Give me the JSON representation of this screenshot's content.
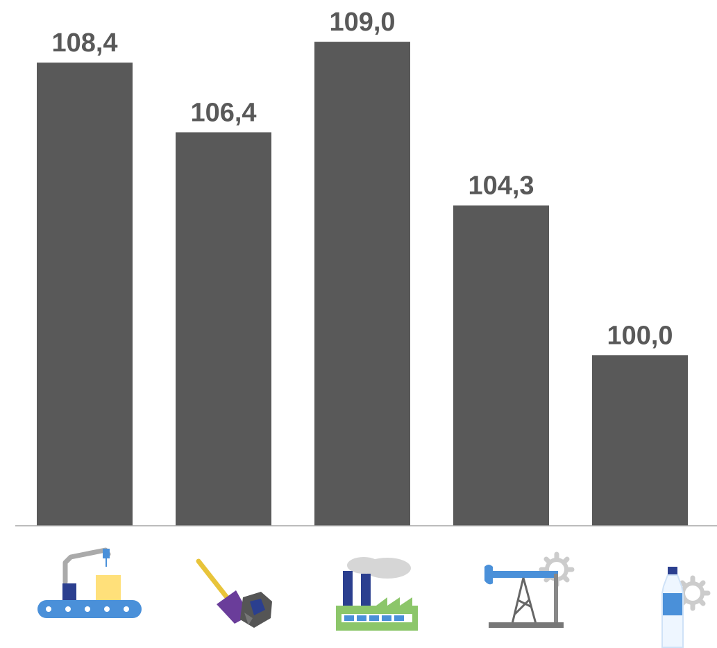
{
  "colors": {
    "bar": "#595959",
    "label": "#595959",
    "axis": "#a6a6a6",
    "icon_blue": "#4a90d9",
    "icon_navy": "#2b3f8f",
    "icon_yellow": "#ffe07a",
    "icon_purple": "#6a3d9a",
    "icon_green": "#8cc66a",
    "icon_gray": "#888888"
  },
  "icons": [
    "conveyor-robot-icon",
    "shovel-coal-icon",
    "factory-icon",
    "oil-pump-icon",
    "water-bottle-icon"
  ],
  "chart_data": {
    "type": "bar",
    "categories": [
      "",
      "",
      "",
      "",
      ""
    ],
    "values": [
      108.4,
      106.4,
      109.0,
      104.3,
      100.0
    ],
    "value_labels": [
      "108,4",
      "106,4",
      "109,0",
      "104,3",
      "100,0"
    ],
    "ylim": [
      95.1,
      109.8
    ],
    "grid": false,
    "legend": "none"
  }
}
